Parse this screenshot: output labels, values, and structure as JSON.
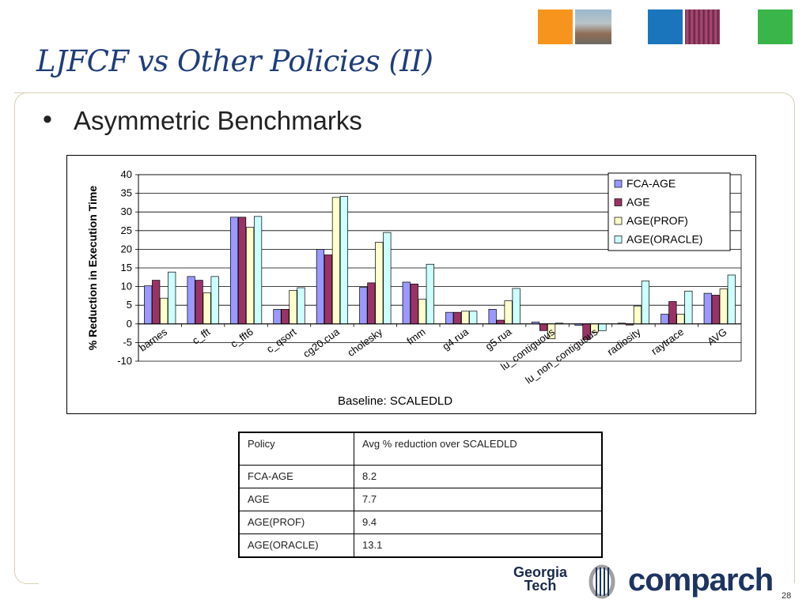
{
  "slide": {
    "title": "LJFCF vs Other Policies (II)",
    "bullet": "Asymmetric Benchmarks",
    "baseline_note": "Baseline: SCALEDLD",
    "page_number": "28"
  },
  "logos": {
    "gt_line1": "Georgia",
    "gt_line2": "Tech",
    "comparch": "comparch",
    "deco_colors": [
      "#f7941d",
      "#1b75bc",
      "#39b54a"
    ]
  },
  "chart_data": {
    "type": "bar",
    "ylabel": "% Reduction in  Execution Time",
    "ylim": [
      -10,
      40
    ],
    "yticks": [
      40,
      35,
      30,
      25,
      20,
      15,
      10,
      5,
      0,
      -5,
      -10
    ],
    "grid": true,
    "legend_position": "top-right",
    "categories": [
      "barnes",
      "c_fft",
      "c_fft6",
      "c_qsort",
      "cg20.cua",
      "cholesky",
      "fmm",
      "g4.rua",
      "g5.rua",
      "lu_contiguous",
      "lu_non_contiguous",
      "radiosity",
      "raytrace",
      "AVG"
    ],
    "series": [
      {
        "name": "FCA-AGE",
        "color": "#9999ff",
        "values": [
          10.2,
          12.7,
          28.6,
          3.9,
          20.0,
          9.8,
          11.2,
          3.1,
          3.9,
          0.5,
          -0.4,
          0.2,
          2.6,
          8.2
        ]
      },
      {
        "name": "AGE",
        "color": "#993366",
        "values": [
          11.7,
          11.7,
          28.6,
          3.9,
          18.5,
          11.0,
          10.7,
          3.1,
          1.0,
          -1.8,
          -4.2,
          -0.3,
          6.0,
          7.7
        ]
      },
      {
        "name": "AGE(PROF)",
        "color": "#ffffcc",
        "values": [
          6.9,
          8.3,
          25.9,
          9.0,
          33.9,
          21.9,
          6.6,
          3.4,
          6.2,
          -4.0,
          -2.2,
          4.8,
          2.6,
          9.4
        ]
      },
      {
        "name": "AGE(ORACLE)",
        "color": "#ccffff",
        "values": [
          13.9,
          12.7,
          28.8,
          9.7,
          34.2,
          24.5,
          16.0,
          3.4,
          9.5,
          0.2,
          -1.8,
          11.5,
          8.8,
          13.1
        ]
      }
    ]
  },
  "table": {
    "header": [
      "Policy",
      "Avg % reduction over  SCALEDLD"
    ],
    "rows": [
      [
        "FCA-AGE",
        "8.2"
      ],
      [
        "AGE",
        "7.7"
      ],
      [
        "AGE(PROF)",
        "9.4"
      ],
      [
        "AGE(ORACLE)",
        "13.1"
      ]
    ]
  }
}
